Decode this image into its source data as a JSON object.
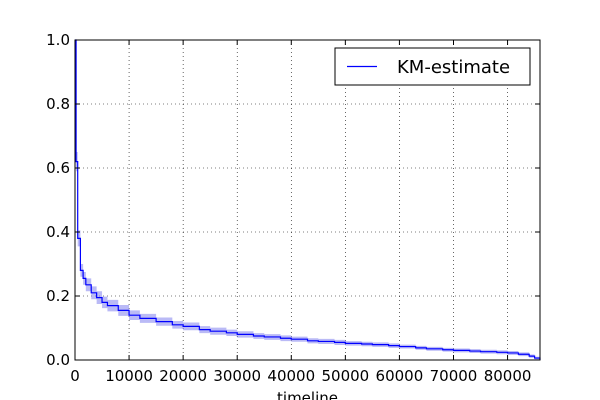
{
  "chart_data": {
    "type": "line",
    "title": "",
    "xlabel": "timeline",
    "ylabel": "",
    "xlim": [
      0,
      86000
    ],
    "ylim": [
      0,
      1.0
    ],
    "grid": true,
    "legend_position": "top-right",
    "xticks": [
      0,
      10000,
      20000,
      30000,
      40000,
      50000,
      60000,
      70000,
      80000
    ],
    "xtick_labels": [
      "0",
      "10000",
      "20000",
      "30000",
      "40000",
      "50000",
      "60000",
      "70000",
      "80000"
    ],
    "yticks": [
      0.0,
      0.2,
      0.4,
      0.6,
      0.8,
      1.0
    ],
    "ytick_labels": [
      "0.0",
      "0.2",
      "0.4",
      "0.6",
      "0.8",
      "1.0"
    ],
    "series": [
      {
        "name": "KM-estimate",
        "color": "#0000ff",
        "ci_color": "#8c8cf0",
        "x": [
          0,
          200,
          500,
          1000,
          1500,
          2000,
          3000,
          4000,
          5000,
          6000,
          8000,
          10000,
          12000,
          15000,
          18000,
          20000,
          23000,
          25000,
          28000,
          30000,
          33000,
          35000,
          38000,
          40000,
          43000,
          45000,
          48000,
          50000,
          53000,
          55000,
          58000,
          60000,
          63000,
          65000,
          68000,
          70000,
          73000,
          75000,
          78000,
          80000,
          82000,
          84000,
          85000,
          86000
        ],
        "y": [
          1.0,
          0.62,
          0.38,
          0.28,
          0.255,
          0.235,
          0.21,
          0.195,
          0.18,
          0.17,
          0.155,
          0.14,
          0.13,
          0.12,
          0.11,
          0.105,
          0.095,
          0.09,
          0.085,
          0.08,
          0.075,
          0.072,
          0.068,
          0.065,
          0.06,
          0.058,
          0.055,
          0.052,
          0.05,
          0.048,
          0.045,
          0.042,
          0.038,
          0.035,
          0.032,
          0.03,
          0.028,
          0.026,
          0.024,
          0.022,
          0.018,
          0.012,
          0.006,
          0.0
        ],
        "ci_lower": [
          1.0,
          0.59,
          0.355,
          0.26,
          0.235,
          0.215,
          0.19,
          0.175,
          0.162,
          0.152,
          0.138,
          0.125,
          0.116,
          0.107,
          0.098,
          0.093,
          0.084,
          0.079,
          0.075,
          0.07,
          0.066,
          0.063,
          0.059,
          0.057,
          0.052,
          0.05,
          0.047,
          0.045,
          0.043,
          0.041,
          0.038,
          0.036,
          0.032,
          0.029,
          0.026,
          0.024,
          0.022,
          0.02,
          0.018,
          0.016,
          0.012,
          0.007,
          0.002,
          0.0
        ],
        "ci_upper": [
          1.0,
          0.65,
          0.405,
          0.3,
          0.275,
          0.255,
          0.23,
          0.215,
          0.198,
          0.188,
          0.172,
          0.155,
          0.144,
          0.133,
          0.122,
          0.117,
          0.106,
          0.101,
          0.095,
          0.09,
          0.084,
          0.081,
          0.077,
          0.073,
          0.068,
          0.066,
          0.063,
          0.059,
          0.057,
          0.055,
          0.052,
          0.048,
          0.044,
          0.041,
          0.038,
          0.036,
          0.034,
          0.032,
          0.03,
          0.028,
          0.024,
          0.017,
          0.01,
          0.004
        ]
      }
    ]
  }
}
